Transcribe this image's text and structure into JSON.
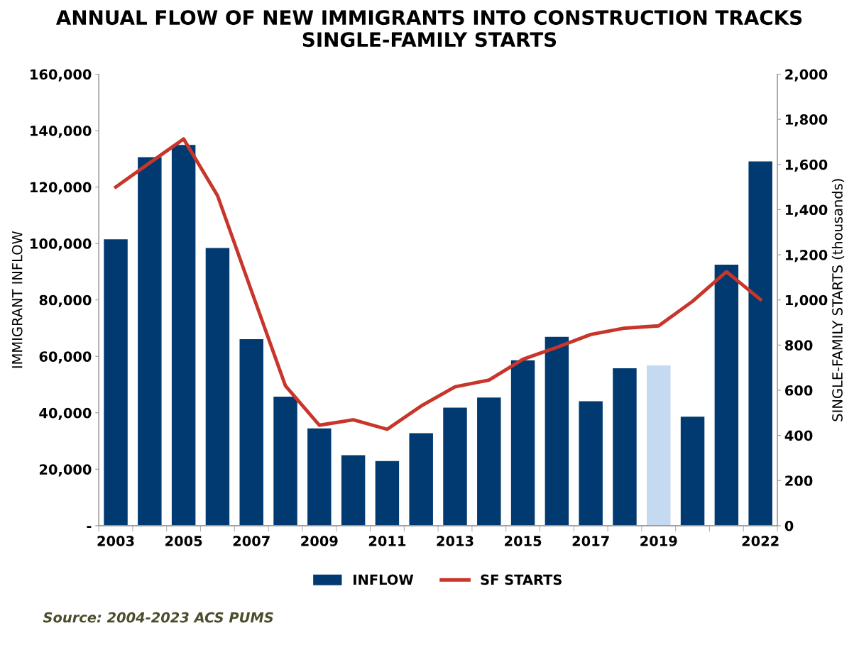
{
  "chart_data": {
    "type": "bar",
    "title": "ANNUAL FLOW OF NEW IMMIGRANTS INTO CONSTRUCTION TRACKS\nSINGLE-FAMILY STARTS",
    "ylabel": "IMMIGRANT INFLOW",
    "y2label": "SINGLE-FAMILY STARTS (thousands)",
    "categories": [
      "2003",
      null,
      "2005",
      null,
      "2007",
      null,
      "2009",
      null,
      "2011",
      null,
      "2013",
      null,
      "2015",
      null,
      "2017",
      null,
      "2019",
      null,
      null,
      "2022"
    ],
    "series": [
      {
        "name": "INFLOW",
        "color": "#003a70",
        "colors": [
          "#003a70",
          "#003a70",
          "#003a70",
          "#003a70",
          "#003a70",
          "#003a70",
          "#003a70",
          "#003a70",
          "#003a70",
          "#003a70",
          "#003a70",
          "#003a70",
          "#003a70",
          "#003a70",
          "#003a70",
          "#003a70",
          "#c5d9f1",
          "#003a70",
          "#003a70",
          "#003a70"
        ],
        "values": [
          101500,
          130600,
          134900,
          98400,
          66100,
          45700,
          34500,
          25000,
          22900,
          32800,
          41800,
          45400,
          58600,
          66900,
          44100,
          55800,
          56800,
          38600,
          92500,
          129100
        ]
      },
      {
        "name": "SF STARTS",
        "type": "line",
        "axis": "y2",
        "color": "#c8352b",
        "values": [
          1500,
          1607,
          1713,
          1462,
          1040,
          620,
          445,
          469,
          427,
          530,
          615,
          645,
          737,
          790,
          847,
          875,
          885,
          994,
          1125,
          1002
        ]
      }
    ],
    "ylim": [
      0,
      160000
    ],
    "yticks": [
      {
        "value": 0,
        "label": "-"
      },
      {
        "value": 20000,
        "label": "20,000"
      },
      {
        "value": 40000,
        "label": "40,000"
      },
      {
        "value": 60000,
        "label": "60,000"
      },
      {
        "value": 80000,
        "label": "80,000"
      },
      {
        "value": 100000,
        "label": "100,000"
      },
      {
        "value": 120000,
        "label": "120,000"
      },
      {
        "value": 140000,
        "label": "140,000"
      },
      {
        "value": 160000,
        "label": "160,000"
      }
    ],
    "y2lim": [
      0,
      2000
    ],
    "y2ticks": [
      0,
      200,
      400,
      600,
      800,
      {
        "value": 1000,
        "label": "1,000"
      },
      {
        "value": 1200,
        "label": "1,200"
      },
      {
        "value": 1400,
        "label": "1,400"
      },
      {
        "value": 1600,
        "label": "1,600"
      },
      {
        "value": 1800,
        "label": "1,800"
      },
      {
        "value": 2000,
        "label": "2,000"
      }
    ],
    "grid": false,
    "legend": "bottom",
    "marker": "none",
    "line_style": "solid",
    "annotations": [
      "Source: 2004-2023 ACS PUMS"
    ]
  }
}
